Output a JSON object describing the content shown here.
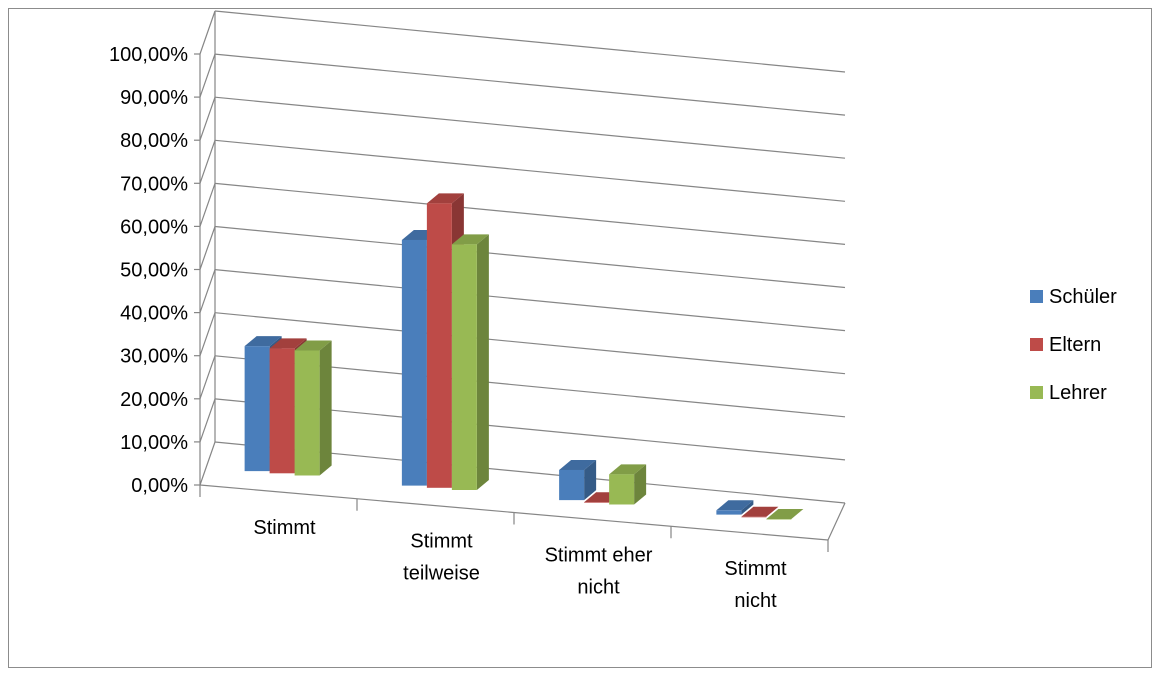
{
  "chart_data": {
    "type": "bar",
    "style": "3d-clustered-column",
    "categories": [
      [
        "Stimmt"
      ],
      [
        "Stimmt",
        "teilweise"
      ],
      [
        "Stimmt eher",
        "nicht"
      ],
      [
        "Stimmt",
        "nicht"
      ]
    ],
    "series": [
      {
        "name": "Schüler",
        "color": "#4a7ebb",
        "values": [
          0.29,
          0.57,
          0.07,
          0.01
        ]
      },
      {
        "name": "Eltern",
        "color": "#be4b48",
        "values": [
          0.29,
          0.66,
          0.0,
          0.0
        ]
      },
      {
        "name": "Lehrer",
        "color": "#98b954",
        "values": [
          0.29,
          0.57,
          0.07,
          0.0
        ]
      }
    ],
    "y_ticks": [
      "0,00%",
      "10,00%",
      "20,00%",
      "30,00%",
      "40,00%",
      "50,00%",
      "60,00%",
      "70,00%",
      "80,00%",
      "90,00%",
      "100,00%"
    ],
    "ylim": [
      0,
      1
    ],
    "grid": true,
    "legend_position": "right"
  }
}
